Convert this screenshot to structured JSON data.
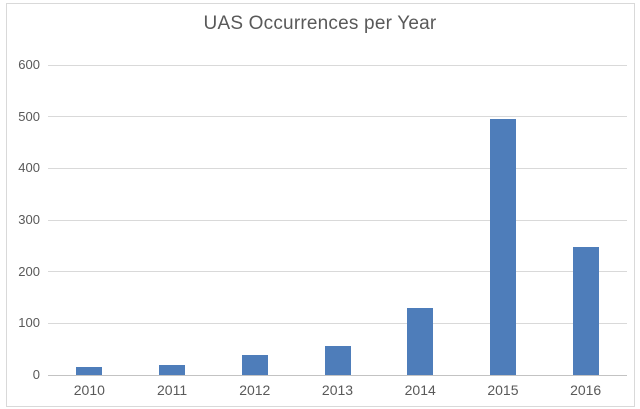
{
  "chart_data": {
    "type": "bar",
    "title": "UAS Occurrences per Year",
    "categories": [
      "2010",
      "2011",
      "2012",
      "2013",
      "2014",
      "2015",
      "2016"
    ],
    "values": [
      15,
      20,
      38,
      57,
      130,
      495,
      247
    ],
    "xlabel": "",
    "ylabel": "",
    "ylim": [
      0,
      600
    ],
    "yticks": [
      0,
      100,
      200,
      300,
      400,
      500,
      600
    ],
    "grid": true,
    "legend": false,
    "colors": {
      "bar": "#4e7dba",
      "gridline": "#d9d9d9",
      "axis_line": "#c3c3c3",
      "text": "#595959",
      "background": "#ffffff",
      "frame_border": "#d9d9d9"
    }
  }
}
